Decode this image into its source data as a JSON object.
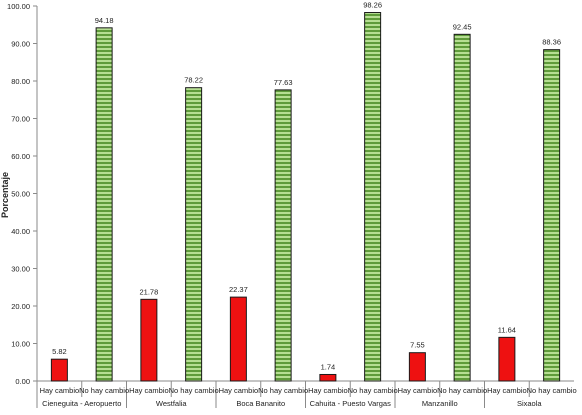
{
  "chart_data": {
    "type": "bar",
    "ylabel": "Porcentaje",
    "ylim": [
      0,
      100
    ],
    "y_ticks": [
      "0.00",
      "10.00",
      "20.00",
      "30.00",
      "40.00",
      "50.00",
      "60.00",
      "70.00",
      "80.00",
      "90.00",
      "100.00"
    ],
    "grid": false,
    "groups": [
      {
        "label": "Cieneguita - Aeropuerto",
        "bars": [
          {
            "category": "Hay cambio",
            "value": 5.82,
            "value_label": "5.82"
          },
          {
            "category": "No hay cambio",
            "value": 94.18,
            "value_label": "94.18"
          }
        ]
      },
      {
        "label": "Westfalia",
        "bars": [
          {
            "category": "Hay cambio",
            "value": 21.78,
            "value_label": "21.78"
          },
          {
            "category": "No hay cambio",
            "value": 78.22,
            "value_label": "78.22"
          }
        ]
      },
      {
        "label": "Boca Bananito",
        "bars": [
          {
            "category": "Hay cambio",
            "value": 22.37,
            "value_label": "22.37"
          },
          {
            "category": "No hay cambio",
            "value": 77.63,
            "value_label": "77.63"
          }
        ]
      },
      {
        "label": "Cahuita - Puesto Vargas",
        "bars": [
          {
            "category": "Hay cambio",
            "value": 1.74,
            "value_label": "1.74"
          },
          {
            "category": "No hay cambio",
            "value": 98.26,
            "value_label": "98.26"
          }
        ]
      },
      {
        "label": "Manzanillo",
        "bars": [
          {
            "category": "Hay cambio",
            "value": 7.55,
            "value_label": "7.55"
          },
          {
            "category": "No hay cambio",
            "value": 92.45,
            "value_label": "92.45"
          }
        ]
      },
      {
        "label": "Sixaola",
        "bars": [
          {
            "category": "Hay cambio",
            "value": 11.64,
            "value_label": "11.64"
          },
          {
            "category": "No hay cambio",
            "value": 88.36,
            "value_label": "88.36"
          }
        ]
      }
    ],
    "colors": {
      "Hay cambio": "#ee1111",
      "No hay cambio_light": "#b6de92",
      "No hay cambio_dark": "#5f9b3a",
      "outline": "#1a1a1a",
      "axis": "#8a8a8a"
    }
  }
}
